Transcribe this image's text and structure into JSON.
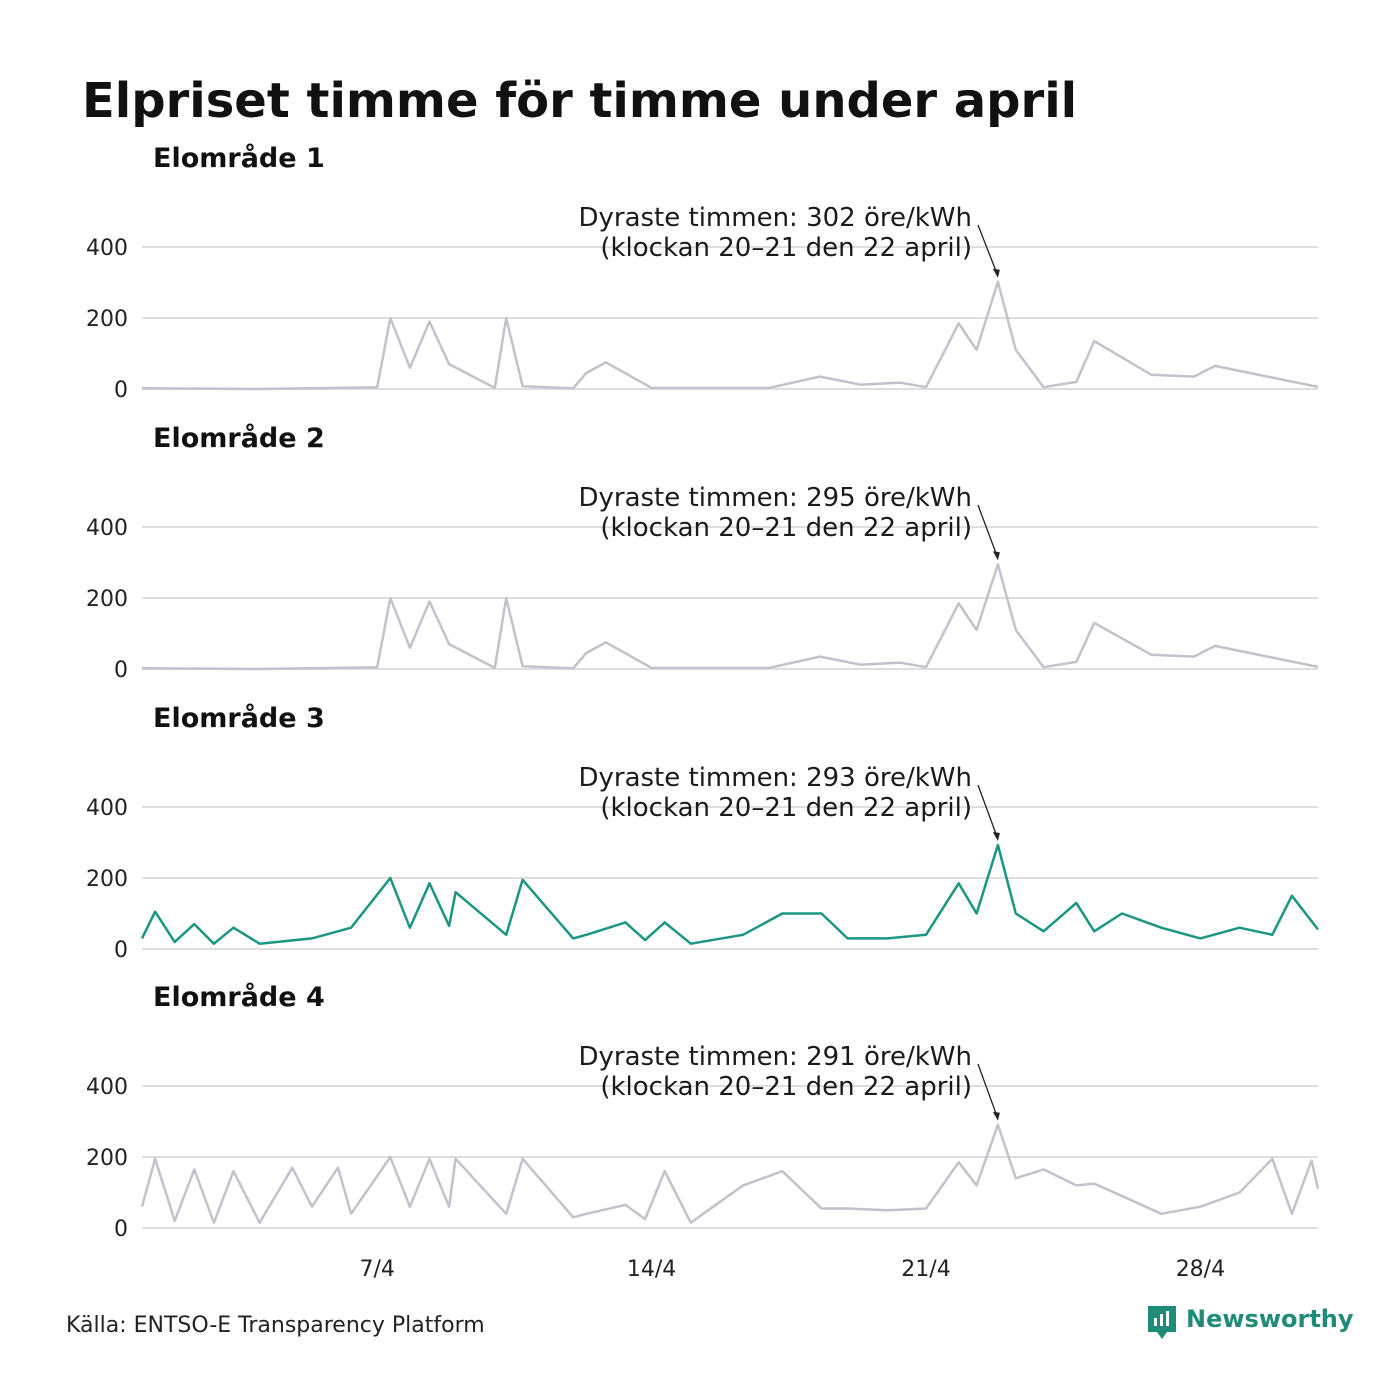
{
  "title": "Elpriset timme för timme under april",
  "source": "Källa: ENTSO-E Transparency Platform",
  "brand": {
    "name": "Newsworthy",
    "icon": "newsworthy-logo-icon",
    "color": "#1f8c7a"
  },
  "colors": {
    "highlight": "#1a9682",
    "muted": "#c2c2cc",
    "grid": "#dedede"
  },
  "chart_data": [
    {
      "type": "line",
      "title": "Elområde 1",
      "ylim": [
        0,
        400
      ],
      "yticks": [
        0,
        200,
        400
      ],
      "xticks": [
        "7/4",
        "14/4",
        "21/4",
        "28/4"
      ],
      "highlighted": false,
      "annotation": {
        "line1": "Dyraste timmen: 302 öre/kWh",
        "line2": "(klockan 20–21 den 22 april)",
        "peak": 302
      },
      "x": [
        "1/4 00:00",
        "4/4 00:00",
        "7/4 00:00",
        "7/4 08:00",
        "7/4 20:00",
        "8/4 08:00",
        "8/4 20:00",
        "10/4 00:00",
        "10/4 07:00",
        "10/4 17:00",
        "12/4 00:00",
        "12/4 08:00",
        "12/4 20:00",
        "14/4 00:00",
        "17/4 00:00",
        "18/4 07:00",
        "19/4 08:00",
        "20/4 08:00",
        "21/4 00:00",
        "21/4 20:00",
        "22/4 07:00",
        "22/4 20:00",
        "23/4 07:00",
        "24/4 00:00",
        "24/4 20:00",
        "25/4 07:00",
        "26/4 18:00",
        "27/4 20:00",
        "28/4 09:00",
        "1/5 00:00"
      ],
      "y": [
        2,
        0,
        5,
        200,
        60,
        190,
        70,
        3,
        200,
        8,
        2,
        45,
        75,
        3,
        3,
        35,
        12,
        18,
        5,
        185,
        110,
        302,
        110,
        5,
        20,
        135,
        40,
        35,
        65,
        6
      ]
    },
    {
      "type": "line",
      "title": "Elområde 2",
      "ylim": [
        0,
        400
      ],
      "yticks": [
        0,
        200,
        400
      ],
      "xticks": [
        "7/4",
        "14/4",
        "21/4",
        "28/4"
      ],
      "highlighted": false,
      "annotation": {
        "line1": "Dyraste timmen: 295 öre/kWh",
        "line2": "(klockan 20–21 den 22 april)",
        "peak": 295
      },
      "x": [
        "1/4 00:00",
        "4/4 00:00",
        "7/4 00:00",
        "7/4 08:00",
        "7/4 20:00",
        "8/4 08:00",
        "8/4 20:00",
        "10/4 00:00",
        "10/4 07:00",
        "10/4 17:00",
        "12/4 00:00",
        "12/4 08:00",
        "12/4 20:00",
        "14/4 00:00",
        "17/4 00:00",
        "18/4 07:00",
        "19/4 08:00",
        "20/4 08:00",
        "21/4 00:00",
        "21/4 20:00",
        "22/4 07:00",
        "22/4 20:00",
        "23/4 07:00",
        "24/4 00:00",
        "24/4 20:00",
        "25/4 07:00",
        "26/4 18:00",
        "27/4 20:00",
        "28/4 09:00",
        "1/5 00:00"
      ],
      "y": [
        2,
        0,
        5,
        200,
        60,
        190,
        70,
        3,
        200,
        8,
        2,
        45,
        75,
        3,
        3,
        35,
        12,
        18,
        5,
        185,
        110,
        295,
        110,
        5,
        20,
        130,
        40,
        35,
        65,
        6
      ]
    },
    {
      "type": "line",
      "title": "Elområde 3",
      "ylim": [
        0,
        400
      ],
      "yticks": [
        0,
        200,
        400
      ],
      "xticks": [
        "7/4",
        "14/4",
        "21/4",
        "28/4"
      ],
      "highlighted": true,
      "annotation": {
        "line1": "Dyraste timmen: 293 öre/kWh",
        "line2": "(klockan 20–21 den 22 april)",
        "peak": 293
      },
      "x": [
        "1/4 00:00",
        "1/4 08:00",
        "1/4 20:00",
        "2/4 08:00",
        "2/4 20:00",
        "3/4 08:00",
        "4/4 00:00",
        "5/4 08:00",
        "6/4 00:00",
        "6/4 08:00",
        "7/4 08:00",
        "7/4 20:00",
        "8/4 08:00",
        "8/4 20:00",
        "9/4 00:00",
        "10/4 07:00",
        "10/4 17:00",
        "12/4 00:00",
        "12/4 08:00",
        "13/4 08:00",
        "13/4 20:00",
        "14/4 08:00",
        "15/4 00:00",
        "16/4 08:00",
        "17/4 08:00",
        "18/4 08:00",
        "19/4 00:00",
        "20/4 00:00",
        "21/4 00:00",
        "21/4 20:00",
        "22/4 07:00",
        "22/4 20:00",
        "23/4 07:00",
        "24/4 00:00",
        "24/4 20:00",
        "25/4 07:00",
        "26/4 00:00",
        "27/4 00:00",
        "28/4 00:00",
        "29/4 00:00",
        "29/4 20:00",
        "30/4 08:00",
        "1/5 00:00"
      ],
      "y": [
        30,
        105,
        20,
        70,
        15,
        60,
        15,
        30,
        50,
        60,
        200,
        60,
        185,
        65,
        160,
        40,
        195,
        30,
        40,
        75,
        25,
        75,
        15,
        40,
        100,
        100,
        30,
        30,
        40,
        185,
        100,
        293,
        100,
        50,
        130,
        50,
        100,
        60,
        30,
        60,
        40,
        150,
        55
      ]
    },
    {
      "type": "line",
      "title": "Elområde 4",
      "ylim": [
        0,
        400
      ],
      "yticks": [
        0,
        200,
        400
      ],
      "xticks": [
        "7/4",
        "14/4",
        "21/4",
        "28/4"
      ],
      "highlighted": false,
      "annotation": {
        "line1": "Dyraste timmen: 291 öre/kWh",
        "line2": "(klockan 20–21 den 22 april)",
        "peak": 291
      },
      "x": [
        "1/4 00:00",
        "1/4 08:00",
        "1/4 20:00",
        "2/4 08:00",
        "2/4 20:00",
        "3/4 08:00",
        "4/4 00:00",
        "4/4 20:00",
        "5/4 08:00",
        "6/4 00:00",
        "6/4 08:00",
        "7/4 08:00",
        "7/4 20:00",
        "8/4 08:00",
        "8/4 20:00",
        "9/4 00:00",
        "10/4 07:00",
        "10/4 17:00",
        "12/4 00:00",
        "12/4 08:00",
        "13/4 08:00",
        "13/4 20:00",
        "14/4 08:00",
        "15/4 00:00",
        "16/4 08:00",
        "17/4 08:00",
        "18/4 08:00",
        "19/4 00:00",
        "20/4 00:00",
        "21/4 00:00",
        "21/4 20:00",
        "22/4 07:00",
        "22/4 20:00",
        "23/4 07:00",
        "24/4 00:00",
        "24/4 20:00",
        "25/4 07:00",
        "26/4 00:00",
        "27/4 00:00",
        "28/4 00:00",
        "29/4 00:00",
        "29/4 20:00",
        "30/4 08:00",
        "30/4 20:00",
        "1/5 00:00"
      ],
      "y": [
        60,
        195,
        20,
        165,
        15,
        160,
        15,
        170,
        60,
        170,
        40,
        200,
        60,
        195,
        60,
        195,
        40,
        195,
        30,
        40,
        65,
        25,
        160,
        15,
        120,
        160,
        55,
        55,
        50,
        55,
        185,
        120,
        291,
        140,
        165,
        120,
        125,
        90,
        40,
        60,
        100,
        195,
        40,
        190,
        110
      ]
    }
  ]
}
